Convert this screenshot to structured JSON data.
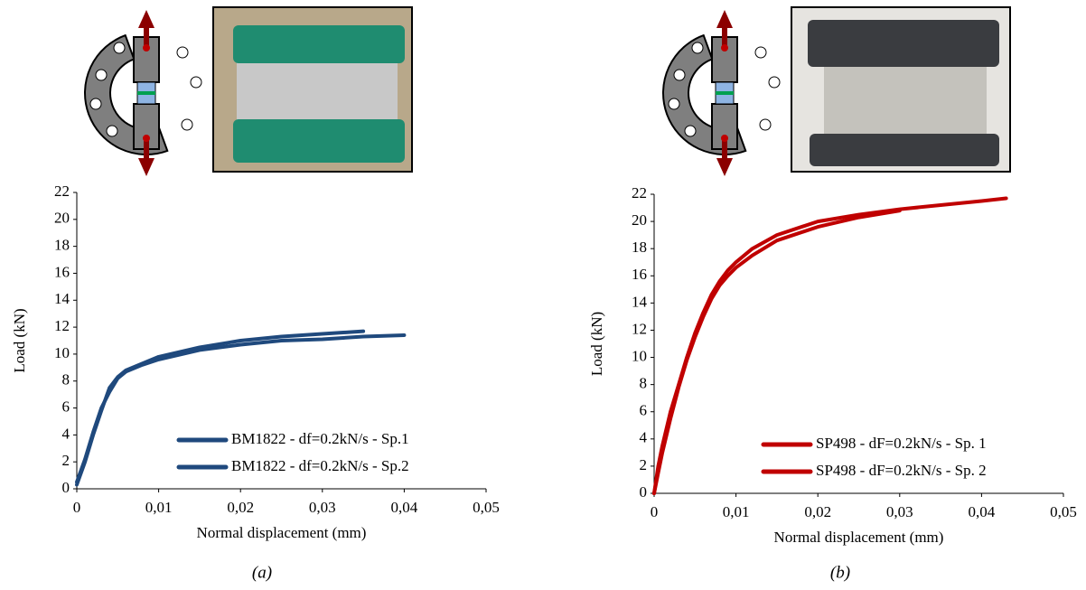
{
  "chart_data": [
    {
      "type": "line",
      "x_label": "Normal displacement (mm)",
      "y_label": "Load (kN)",
      "caption": "(a)",
      "xlim": [
        0,
        0.05
      ],
      "ylim": [
        0,
        22
      ],
      "xticks": [
        0,
        {
          "value": 0.01,
          "label": "0,01"
        },
        {
          "value": 0.02,
          "label": "0,02"
        },
        {
          "value": 0.03,
          "label": "0,03"
        },
        {
          "value": 0.04,
          "label": "0,04"
        },
        {
          "value": 0.05,
          "label": "0,05"
        }
      ],
      "yticks": [
        0,
        2,
        4,
        6,
        8,
        10,
        12,
        14,
        16,
        18,
        20,
        22
      ],
      "grid": false,
      "legend": "lower right",
      "series": [
        {
          "name": "BM1822 - df=0.2kN/s - Sp.1",
          "color": "#1f497d",
          "x": [
            0,
            0.001,
            0.002,
            0.003,
            0.004,
            0.005,
            0.006,
            0.008,
            0.01,
            0.015,
            0.02,
            0.025,
            0.03,
            0.035
          ],
          "values": [
            0.3,
            2,
            4,
            5.8,
            7.5,
            8.3,
            8.8,
            9.3,
            9.8,
            10.5,
            11,
            11.3,
            11.5,
            11.7
          ]
        },
        {
          "name": "BM1822 - df=0.2kN/s - Sp.2",
          "color": "#1f497d",
          "x": [
            0,
            0.001,
            0.002,
            0.003,
            0.004,
            0.005,
            0.006,
            0.008,
            0.01,
            0.015,
            0.02,
            0.025,
            0.03,
            0.035,
            0.04
          ],
          "values": [
            0.5,
            2.2,
            4.2,
            6,
            7.2,
            8.2,
            8.7,
            9.2,
            9.6,
            10.3,
            10.7,
            11,
            11.1,
            11.3,
            11.4
          ]
        }
      ]
    },
    {
      "type": "line",
      "x_label": "Normal displacement (mm)",
      "y_label": "Load (kN)",
      "caption": "(b)",
      "xlim": [
        0,
        0.05
      ],
      "ylim": [
        0,
        22
      ],
      "xticks": [
        0,
        {
          "value": 0.01,
          "label": "0,01"
        },
        {
          "value": 0.02,
          "label": "0,02"
        },
        {
          "value": 0.03,
          "label": "0,03"
        },
        {
          "value": 0.04,
          "label": "0,04"
        },
        {
          "value": 0.05,
          "label": "0,05"
        }
      ],
      "yticks": [
        0,
        2,
        4,
        6,
        8,
        10,
        12,
        14,
        16,
        18,
        20,
        22
      ],
      "grid": false,
      "legend": "lower right",
      "series": [
        {
          "name": "SP498 - dF=0.2kN/s - Sp. 1",
          "color": "#c00000",
          "x": [
            0,
            0.0005,
            0.001,
            0.002,
            0.003,
            0.004,
            0.005,
            0.006,
            0.007,
            0.008,
            0.009,
            0.01,
            0.012,
            0.015,
            0.02,
            0.025,
            0.03,
            0.035,
            0.04,
            0.043
          ],
          "values": [
            0,
            2,
            3.5,
            6,
            8,
            10,
            11.8,
            13.3,
            14.6,
            15.6,
            16.4,
            17,
            18,
            19,
            20,
            20.5,
            20.9,
            21.2,
            21.5,
            21.7
          ]
        },
        {
          "name": "SP498 - dF=0.2kN/s - Sp. 2",
          "color": "#c00000",
          "x": [
            0,
            0.0005,
            0.001,
            0.002,
            0.003,
            0.004,
            0.005,
            0.006,
            0.007,
            0.008,
            0.009,
            0.01,
            0.012,
            0.015,
            0.02,
            0.025,
            0.03
          ],
          "values": [
            0,
            1.5,
            3,
            5.5,
            7.8,
            9.8,
            11.5,
            13,
            14.3,
            15.3,
            16,
            16.6,
            17.5,
            18.6,
            19.6,
            20.3,
            20.8
          ]
        }
      ]
    }
  ]
}
